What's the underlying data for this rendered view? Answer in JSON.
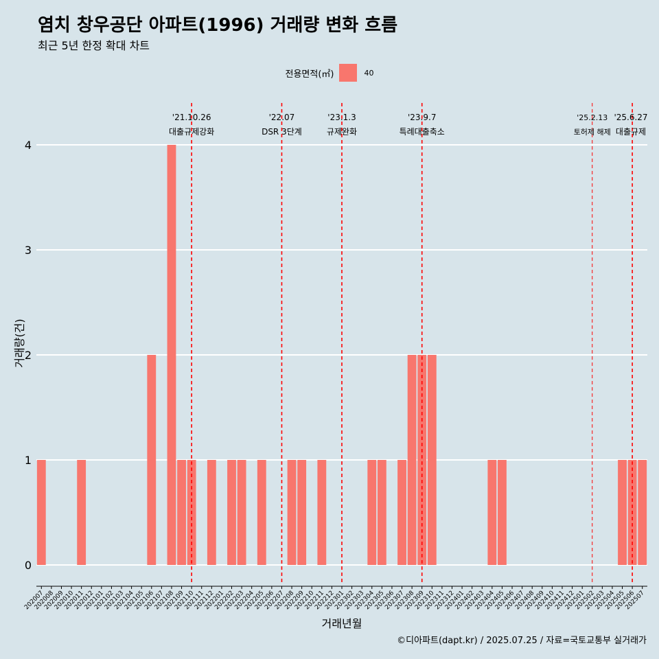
{
  "title": "염치 창우공단 아파트(1996) 거래량 변화 흐름",
  "subtitle": "최근 5년 한정 확대 차트",
  "caption": "©디아파트(dapt.kr) / 2025.07.25 / 자료=국토교통부 실거래가",
  "colors": {
    "background": "#d7e4ea",
    "bar": "#f8766d",
    "event_line": "#ff0000",
    "grid": "#ffffff"
  },
  "chart_data": {
    "type": "bar",
    "xlabel": "거래년월",
    "ylabel": "거래량(건)",
    "ylim": [
      0,
      4
    ],
    "yticks": [
      0,
      1,
      2,
      3,
      4
    ],
    "grid": true,
    "legend": {
      "position": "top",
      "title": "전용면적(㎡)",
      "entries": [
        "40"
      ]
    },
    "categories": [
      "202007",
      "202008",
      "202009",
      "202010",
      "202011",
      "202012",
      "202101",
      "202102",
      "202103",
      "202104",
      "202105",
      "202106",
      "202107",
      "202108",
      "202109",
      "202110",
      "202111",
      "202112",
      "202201",
      "202202",
      "202203",
      "202204",
      "202205",
      "202206",
      "202207",
      "202208",
      "202209",
      "202210",
      "202211",
      "202212",
      "202301",
      "202302",
      "202303",
      "202304",
      "202305",
      "202306",
      "202307",
      "202308",
      "202309",
      "202310",
      "202311",
      "202312",
      "202401",
      "202402",
      "202403",
      "202404",
      "202405",
      "202406",
      "202407",
      "202408",
      "202409",
      "202410",
      "202411",
      "202412",
      "202501",
      "202502",
      "202503",
      "202504",
      "202505",
      "202506",
      "202507"
    ],
    "series": [
      {
        "name": "40",
        "values": [
          1,
          0,
          0,
          0,
          1,
          0,
          0,
          0,
          0,
          0,
          0,
          2,
          0,
          4,
          1,
          1,
          0,
          1,
          0,
          1,
          1,
          0,
          1,
          0,
          0,
          1,
          1,
          0,
          1,
          0,
          0,
          0,
          0,
          1,
          1,
          0,
          1,
          2,
          2,
          2,
          0,
          0,
          0,
          0,
          0,
          1,
          1,
          0,
          0,
          0,
          0,
          0,
          0,
          0,
          0,
          0,
          0,
          0,
          1,
          1,
          1
        ]
      }
    ],
    "annotations": [
      {
        "x": "202110",
        "date": "'21.10.26",
        "label": "대출규제강화"
      },
      {
        "x": "202207",
        "date": "'22.07",
        "label": "DSR 3단계"
      },
      {
        "x": "202301",
        "date": "'23.1.3",
        "label": "규제완화"
      },
      {
        "x": "202309",
        "date": "'23.9.7",
        "label": "특례대출축소"
      },
      {
        "x": "202502",
        "date": "'25.2.13",
        "label": "토허제 해제"
      },
      {
        "x": "202506",
        "date": "'25.6.27",
        "label": "대출규제"
      }
    ]
  }
}
